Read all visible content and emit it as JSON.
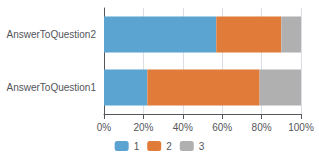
{
  "chart_data": {
    "type": "bar",
    "orientation": "horizontal",
    "stacked": true,
    "categories": [
      "AnswerToQuestion1",
      "AnswerToQuestion2"
    ],
    "series": [
      {
        "name": "1",
        "color": "#5ba3d0",
        "values": [
          0.22,
          0.57
        ]
      },
      {
        "name": "2",
        "color": "#e07b39",
        "values": [
          0.57,
          0.33
        ]
      },
      {
        "name": "3",
        "color": "#b0b0b0",
        "values": [
          0.21,
          0.1
        ]
      }
    ],
    "xlim": [
      0,
      1
    ],
    "xticks": [
      {
        "value": 0,
        "label": "0%"
      },
      {
        "value": 0.2,
        "label": "20%"
      },
      {
        "value": 0.4,
        "label": "40%"
      },
      {
        "value": 0.6,
        "label": "60%"
      },
      {
        "value": 0.8,
        "label": "80%"
      },
      {
        "value": 1.0,
        "label": "100%"
      }
    ],
    "grid": true,
    "legend": "bottom"
  }
}
